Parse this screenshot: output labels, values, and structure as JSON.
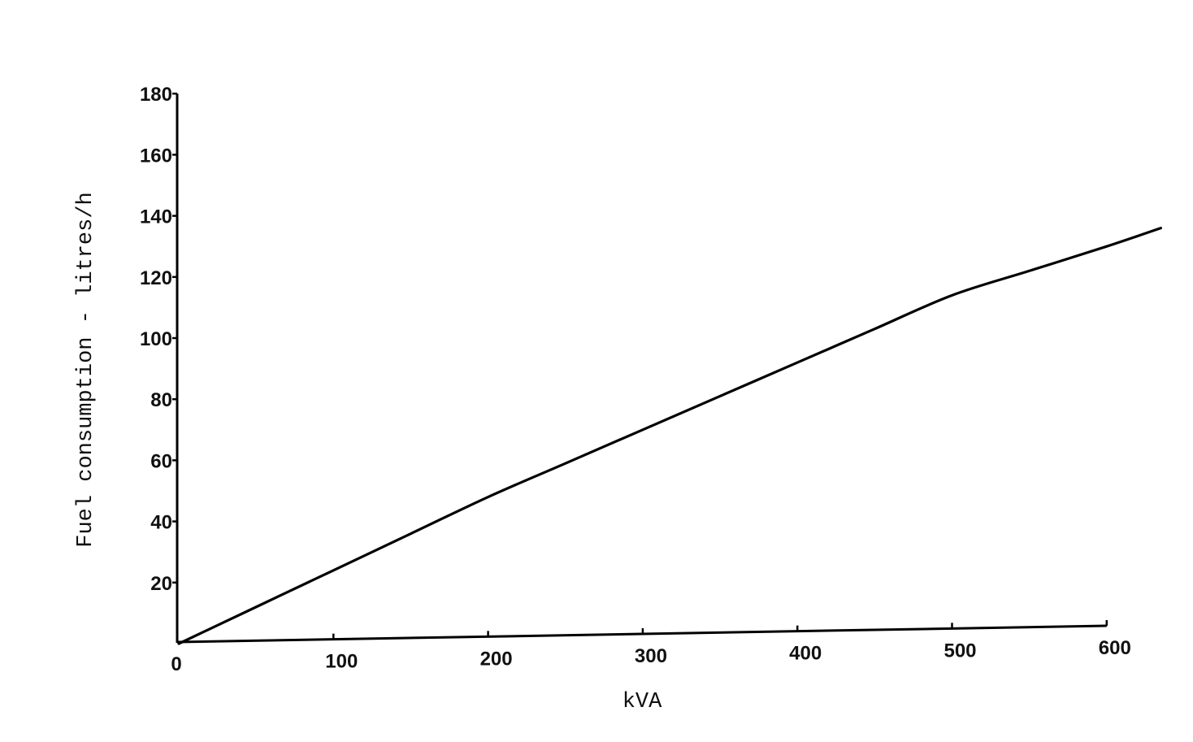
{
  "chart_data": {
    "type": "line",
    "title": "",
    "xlabel": "kVA",
    "ylabel": "Fuel consumption - litres/h",
    "xlim": [
      0,
      635
    ],
    "ylim": [
      0,
      180
    ],
    "xticks": [
      0,
      100,
      200,
      300,
      400,
      500,
      600
    ],
    "yticks": [
      20,
      40,
      60,
      80,
      100,
      120,
      140,
      160,
      180
    ],
    "grid": false,
    "series": [
      {
        "x": [
          0,
          50,
          100,
          150,
          200,
          250,
          300,
          350,
          400,
          450,
          500,
          550,
          600,
          635
        ],
        "y": [
          0,
          12,
          24,
          36,
          48,
          59,
          70,
          81,
          92,
          103,
          114,
          122,
          130,
          136
        ]
      }
    ],
    "colors": {
      "line": "#000000"
    }
  }
}
